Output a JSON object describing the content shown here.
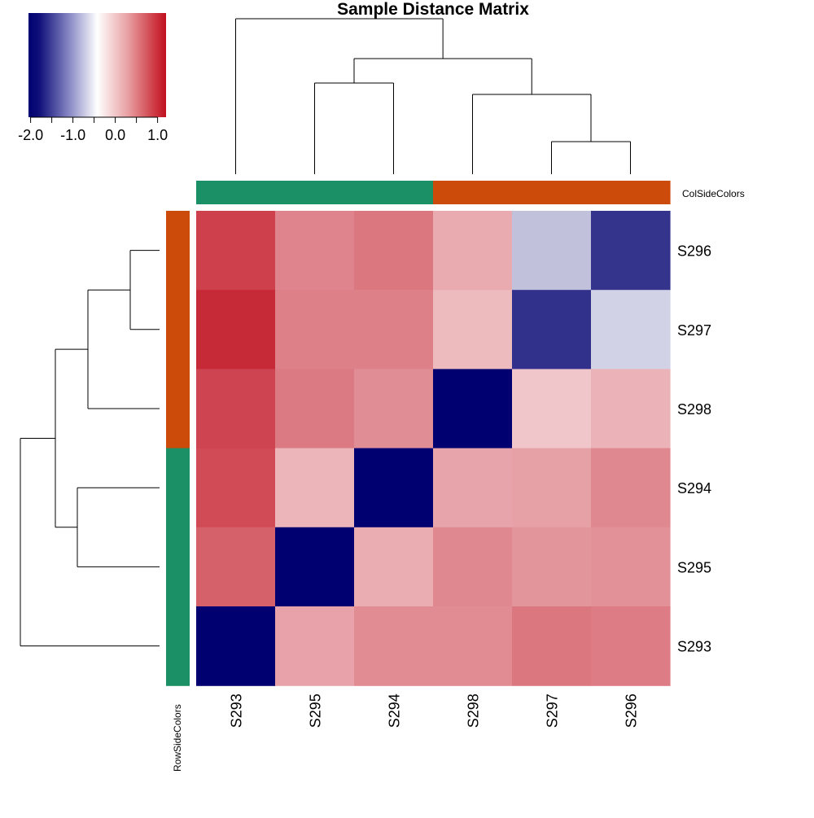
{
  "chart_data": {
    "type": "heatmap",
    "title": "Sample Distance Matrix",
    "row_labels": [
      "S296",
      "S297",
      "S298",
      "S294",
      "S295",
      "S293"
    ],
    "col_labels": [
      "S293",
      "S295",
      "S294",
      "S298",
      "S297",
      "S296"
    ],
    "values": [
      [
        0.92,
        0.55,
        0.62,
        0.35,
        -0.55,
        -1.7
      ],
      [
        1.05,
        0.57,
        0.57,
        0.28,
        -1.72,
        -0.4
      ],
      [
        0.9,
        0.6,
        0.5,
        -2.05,
        0.22,
        0.31
      ],
      [
        0.86,
        0.3,
        -2.05,
        0.38,
        0.4,
        0.53
      ],
      [
        0.74,
        -2.05,
        0.34,
        0.53,
        0.46,
        0.48
      ],
      [
        -2.05,
        0.39,
        0.51,
        0.51,
        0.62,
        0.59
      ]
    ],
    "row_groups": [
      "#CC4A0A",
      "#CC4A0A",
      "#CC4A0A",
      "#1B9067",
      "#1B9067",
      "#1B9067"
    ],
    "col_groups": [
      "#1B9067",
      "#1B9067",
      "#1B9067",
      "#CC4A0A",
      "#CC4A0A",
      "#CC4A0A"
    ],
    "col_side_label": "ColSideColors",
    "row_side_label": "RowSideColors",
    "color_key": {
      "range": [
        -2.05,
        1.2
      ],
      "ticks": [
        -2.0,
        -1.0,
        0.0,
        1.0
      ],
      "tick_labels": [
        "-2.0",
        "-1.0",
        "0.0",
        "1.0"
      ],
      "minor_ticks": [
        -1.5,
        -0.5,
        0.5
      ],
      "colors": [
        "#000070",
        "#FFFFFF",
        "#C0101F"
      ]
    },
    "col_dendrogram": [
      {
        "a": 0,
        "b": 1,
        "h": 0.0
      },
      {
        "a": 1,
        "b": 2,
        "h": 0.0
      }
    ],
    "row_dendrogram": []
  }
}
